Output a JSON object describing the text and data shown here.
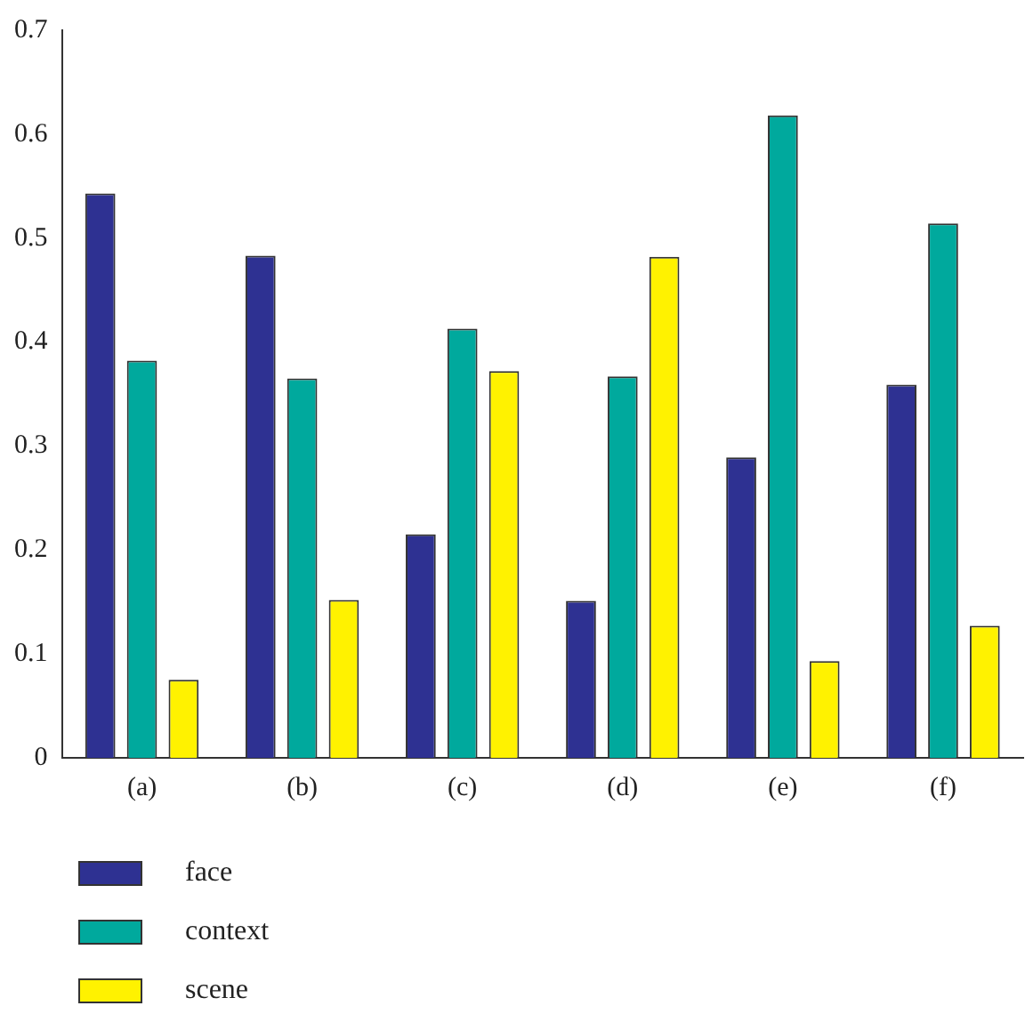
{
  "chart_data": {
    "type": "bar",
    "categories": [
      "(a)",
      "(b)",
      "(c)",
      "(d)",
      "(e)",
      "(f)"
    ],
    "series": [
      {
        "name": "face",
        "color": "#2e3192",
        "values": [
          0.543,
          0.483,
          0.215,
          0.151,
          0.289,
          0.359
        ]
      },
      {
        "name": "context",
        "color": "#00a99d",
        "values": [
          0.382,
          0.365,
          0.413,
          0.367,
          0.618,
          0.514
        ]
      },
      {
        "name": "scene",
        "color": "#fff200",
        "values": [
          0.075,
          0.152,
          0.372,
          0.482,
          0.093,
          0.127
        ]
      }
    ],
    "ylim": [
      0,
      0.7
    ],
    "yticks": [
      0,
      0.1,
      0.2,
      0.3,
      0.4,
      0.5,
      0.6,
      0.7
    ],
    "grid": false,
    "legend": "bottom left"
  }
}
